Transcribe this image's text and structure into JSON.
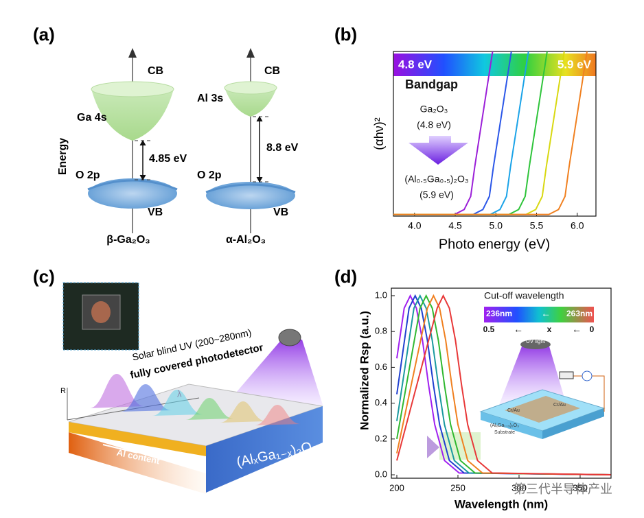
{
  "figure": {
    "a": {
      "label": "(a)",
      "energy": "Energy",
      "left": {
        "cb": "CB",
        "orbital_cb": "Ga 4s",
        "gap": "4.85 eV",
        "orbital_vb": "O 2p",
        "vb": "VB",
        "material": "β-Ga₂O₃"
      },
      "right": {
        "cb": "CB",
        "orbital_cb": "Al 3s",
        "gap": "8.8 eV",
        "orbital_vb": "O 2p",
        "vb": "VB",
        "material": "α-Al₂O₃"
      }
    },
    "c": {
      "label": "(c)",
      "r_axis": "R",
      "lambda": "λ",
      "uv_text": "Solar blind UV (200~280nm)",
      "detector_text": "fully covered photodetector",
      "al_content": "Al content",
      "material": "(AlₓGa₁₋ₓ)₂O₃"
    },
    "watermark": "第三代半导体产业"
  },
  "chart_data": [
    {
      "type": "line",
      "panel_label": "(b)",
      "xlabel": "Photo energy (eV)",
      "ylabel": "(αhν)²",
      "xlim": [
        3.74,
        6.23
      ],
      "ylim": [
        0,
        1
      ],
      "xticks": [
        {
          "value": 4,
          "label": "4.0"
        },
        {
          "value": 4.5,
          "label": "4.5"
        },
        {
          "value": 5,
          "label": "5.0"
        },
        {
          "value": 5.5,
          "label": "5.5"
        },
        {
          "value": 6,
          "label": "6.0"
        }
      ],
      "annotations": [
        "4.8 eV",
        "5.9 eV",
        "Bandgap",
        "Ga₂O₃",
        "(4.8 eV)",
        "(Al₀.₅Ga₀.₅)₂O₃",
        "(5.9 eV)"
      ],
      "series": [
        {
          "color": "#9b1fd8",
          "x": [
            3.74,
            4.49,
            4.61,
            4.69,
            4.74,
            4.96
          ],
          "values": [
            0.01,
            0.01,
            0.04,
            0.12,
            0.3,
            1.0
          ]
        },
        {
          "color": "#2a56e8",
          "x": [
            3.74,
            4.72,
            4.84,
            4.92,
            4.97,
            5.19
          ],
          "values": [
            0.01,
            0.01,
            0.04,
            0.12,
            0.3,
            1.0
          ]
        },
        {
          "color": "#1aa3e8",
          "x": [
            3.74,
            4.93,
            5.05,
            5.13,
            5.18,
            5.4
          ],
          "values": [
            0.01,
            0.01,
            0.04,
            0.12,
            0.3,
            1.0
          ]
        },
        {
          "color": "#2ec43a",
          "x": [
            3.74,
            5.16,
            5.28,
            5.36,
            5.41,
            5.63
          ],
          "values": [
            0.01,
            0.01,
            0.04,
            0.12,
            0.3,
            1.0
          ]
        },
        {
          "color": "#d8d810",
          "x": [
            3.74,
            5.37,
            5.49,
            5.57,
            5.62,
            5.84
          ],
          "values": [
            0.01,
            0.01,
            0.04,
            0.12,
            0.3,
            1.0
          ]
        },
        {
          "color": "#f08020",
          "x": [
            3.74,
            5.65,
            5.77,
            5.85,
            5.9,
            6.12
          ],
          "values": [
            0.01,
            0.01,
            0.04,
            0.12,
            0.3,
            1.0
          ]
        }
      ]
    },
    {
      "type": "line",
      "panel_label": "(d)",
      "xlabel": "Wavelength (nm)",
      "ylabel": "Normalized Rsp (a.u.)",
      "xlim": [
        195.5,
        375.3
      ],
      "ylim": [
        -0.019,
        1.042
      ],
      "xticks": [
        200,
        250,
        300,
        350
      ],
      "yticks": [
        {
          "value": 0,
          "label": "0.0"
        },
        {
          "value": 0.2,
          "label": "0.2"
        },
        {
          "value": 0.4,
          "label": "0.4"
        },
        {
          "value": 0.6,
          "label": "0.6"
        },
        {
          "value": 0.8,
          "label": "0.8"
        },
        {
          "value": 1,
          "label": "1.0"
        }
      ],
      "annotations": [
        "Cut-off wavelength",
        "236nm",
        "263nm",
        "←",
        "0.5",
        "←",
        "x",
        "←",
        "0",
        "UV light",
        "Cr/Au",
        "Cr/Au",
        "(AlₓGa₁₋ₓ)₂O₃",
        "Substrate"
      ],
      "series": [
        {
          "color": "#a020f0",
          "x": [
            200,
            206,
            211,
            216,
            221,
            226,
            231,
            239,
            251,
            375
          ],
          "values": [
            0.65,
            0.93,
            1.0,
            0.93,
            0.75,
            0.5,
            0.28,
            0.08,
            0.01,
            0.0
          ]
        },
        {
          "color": "#2040d0",
          "x": [
            200,
            210,
            215,
            220,
            225,
            230,
            235,
            243,
            255,
            375
          ],
          "values": [
            0.45,
            0.93,
            1.0,
            0.93,
            0.75,
            0.5,
            0.28,
            0.08,
            0.01,
            0.0
          ]
        },
        {
          "color": "#1a9aa0",
          "x": [
            200,
            214,
            219,
            224,
            229,
            234,
            239,
            247,
            259,
            375
          ],
          "values": [
            0.3,
            0.93,
            1.0,
            0.93,
            0.75,
            0.5,
            0.28,
            0.08,
            0.01,
            0.0
          ]
        },
        {
          "color": "#30b830",
          "x": [
            200,
            219,
            224,
            229,
            234,
            239,
            244,
            252,
            264,
            375
          ],
          "values": [
            0.2,
            0.93,
            1.0,
            0.93,
            0.75,
            0.5,
            0.28,
            0.08,
            0.01,
            0.0
          ]
        },
        {
          "color": "#f08020",
          "x": [
            200,
            225,
            230,
            235,
            240,
            245,
            250,
            258,
            270,
            375
          ],
          "values": [
            0.12,
            0.93,
            1.0,
            0.93,
            0.75,
            0.5,
            0.28,
            0.08,
            0.01,
            0.0
          ]
        },
        {
          "color": "#e83838",
          "x": [
            200,
            233,
            238,
            243,
            248,
            253,
            258,
            266,
            278,
            375
          ],
          "values": [
            0.08,
            0.93,
            1.0,
            0.93,
            0.75,
            0.5,
            0.28,
            0.08,
            0.01,
            0.0
          ]
        }
      ]
    }
  ]
}
